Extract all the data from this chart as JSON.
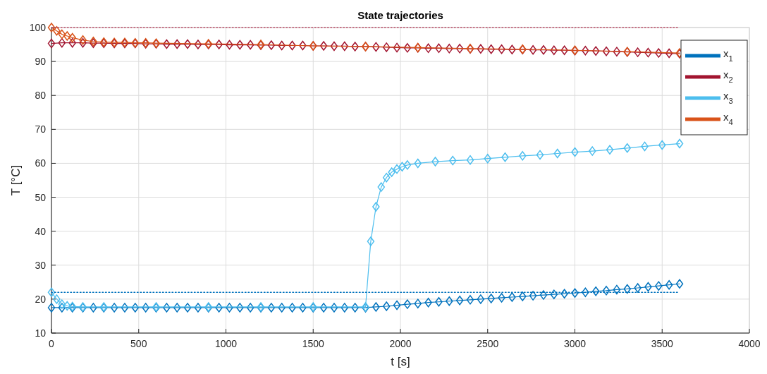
{
  "chart_data": {
    "type": "line",
    "title": "State trajectories",
    "xlabel": "t [s]",
    "ylabel": "T [°C]",
    "x": [
      0,
      60,
      120,
      180,
      240,
      300,
      360,
      420,
      480,
      540,
      600,
      660,
      720,
      780,
      840,
      900,
      960,
      1020,
      1080,
      1140,
      1200,
      1260,
      1320,
      1380,
      1440,
      1500,
      1560,
      1620,
      1680,
      1740,
      1800,
      1860,
      1920,
      1980,
      2040,
      2100,
      2160,
      2220,
      2280,
      2340,
      2400,
      2460,
      2520,
      2580,
      2640,
      2700,
      2760,
      2820,
      2880,
      2940,
      3000,
      3060,
      3120,
      3180,
      3240,
      3300,
      3360,
      3420,
      3480,
      3540,
      3600
    ],
    "xlim": [
      0,
      4000
    ],
    "xticks": [
      0,
      500,
      1000,
      1500,
      2000,
      2500,
      3000,
      3500,
      4000
    ],
    "ylim": [
      10,
      100
    ],
    "yticks": [
      10,
      20,
      30,
      40,
      50,
      60,
      70,
      80,
      90,
      100
    ],
    "grid": true,
    "legend": "top right",
    "marker": "diamond",
    "line_style": "solid",
    "series": [
      {
        "name": "x$_{1}$",
        "color": "#0072bd",
        "values": [
          17.5,
          17.5,
          17.5,
          17.5,
          17.5,
          17.5,
          17.5,
          17.5,
          17.5,
          17.5,
          17.5,
          17.5,
          17.5,
          17.5,
          17.5,
          17.5,
          17.5,
          17.5,
          17.5,
          17.5,
          17.5,
          17.5,
          17.5,
          17.5,
          17.5,
          17.5,
          17.5,
          17.5,
          17.5,
          17.5,
          17.5,
          17.7,
          17.9,
          18.2,
          18.5,
          18.7,
          19.0,
          19.2,
          19.4,
          19.6,
          19.8,
          20.0,
          20.2,
          20.4,
          20.6,
          20.8,
          21.0,
          21.2,
          21.4,
          21.6,
          21.8,
          22.0,
          22.3,
          22.5,
          22.8,
          23.0,
          23.3,
          23.6,
          23.9,
          24.2,
          24.5
        ]
      },
      {
        "name": "x$_{2}$",
        "color": "#a2142f",
        "values": [
          95.3,
          95.5,
          95.5,
          95.5,
          95.4,
          95.4,
          95.3,
          95.3,
          95.3,
          95.2,
          95.2,
          95.1,
          95.1,
          95.1,
          95.0,
          95.0,
          95.0,
          94.9,
          94.9,
          94.9,
          94.8,
          94.8,
          94.7,
          94.7,
          94.7,
          94.6,
          94.6,
          94.5,
          94.5,
          94.4,
          94.4,
          94.3,
          94.2,
          94.1,
          94.0,
          94.0,
          93.9,
          93.9,
          93.8,
          93.8,
          93.7,
          93.7,
          93.6,
          93.6,
          93.5,
          93.5,
          93.4,
          93.4,
          93.3,
          93.3,
          93.2,
          93.2,
          93.1,
          93.0,
          92.9,
          92.8,
          92.7,
          92.6,
          92.5,
          92.4,
          92.3
        ]
      },
      {
        "name": "x$_{3}$",
        "color": "#4dbeee",
        "x": [
          0,
          30,
          60,
          90,
          120,
          180,
          300,
          600,
          900,
          1200,
          1500,
          1800,
          1830,
          1860,
          1890,
          1920,
          1950,
          1980,
          2010,
          2040,
          2100,
          2200,
          2300,
          2400,
          2500,
          2600,
          2700,
          2800,
          2900,
          3000,
          3100,
          3200,
          3300,
          3400,
          3500,
          3600
        ],
        "values": [
          22,
          20,
          18.5,
          18,
          17.8,
          17.7,
          17.7,
          17.7,
          17.7,
          17.7,
          17.7,
          17.7,
          37,
          47.2,
          53,
          55.8,
          57.4,
          58.3,
          59,
          59.5,
          60,
          60.5,
          60.8,
          61,
          61.4,
          61.8,
          62.2,
          62.5,
          62.9,
          63.3,
          63.6,
          64,
          64.5,
          65,
          65.4,
          65.8
        ]
      },
      {
        "name": "x$_{4}$",
        "color": "#d95319",
        "x": [
          0,
          30,
          60,
          90,
          120,
          180,
          240,
          300,
          360,
          420,
          480,
          540,
          600,
          900,
          1200,
          1500,
          1800,
          2100,
          2400,
          2700,
          3000,
          3300,
          3600
        ],
        "values": [
          100,
          99,
          98,
          97.5,
          97,
          96.3,
          95.9,
          95.7,
          95.6,
          95.6,
          95.5,
          95.5,
          95.4,
          95.2,
          95.0,
          94.6,
          94.4,
          94.1,
          93.8,
          93.6,
          93.3,
          92.9,
          92.5
        ]
      },
      {
        "color": "#c0506a",
        "x": [
          0,
          3600
        ],
        "values": [
          100,
          100
        ],
        "line_style": "dotted",
        "marker": "none"
      },
      {
        "color": "#0072bd",
        "x": [
          0,
          3600
        ],
        "values": [
          22,
          22
        ],
        "line_style": "dotted",
        "marker": "none"
      }
    ]
  }
}
